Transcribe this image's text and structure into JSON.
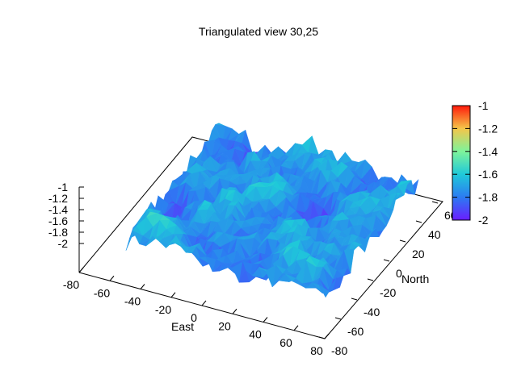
{
  "chart_data": {
    "type": "surface3d",
    "title": "Triangulated view 30,25",
    "xlabel": "East",
    "ylabel": "North",
    "zlabel": "",
    "xlim": [
      -80,
      80
    ],
    "ylim": [
      -80,
      60
    ],
    "zlim": [
      -2,
      -1
    ],
    "x_ticks": [
      "-80",
      "-60",
      "-40",
      "-20",
      "0",
      "20",
      "40",
      "60",
      "80"
    ],
    "y_ticks": [
      "-80",
      "-60",
      "-40",
      "-20",
      "0",
      "20",
      "40",
      "60"
    ],
    "z_ticks": [
      "-1",
      "-1.2",
      "-1.4",
      "-1.6",
      "-1.8",
      "-2"
    ],
    "colorbar": {
      "range": [
        -2,
        -1
      ],
      "ticks": [
        "-1",
        "-1.2",
        "-1.4",
        "-1.6",
        "-1.8",
        "-2"
      ],
      "colormap": "rainbow"
    },
    "view": "30,25",
    "grid": false,
    "surface_region_x": [
      -60,
      70
    ],
    "surface_region_y": [
      -60,
      55
    ],
    "surface_value_range_approx": [
      -1.95,
      -1.5
    ]
  }
}
